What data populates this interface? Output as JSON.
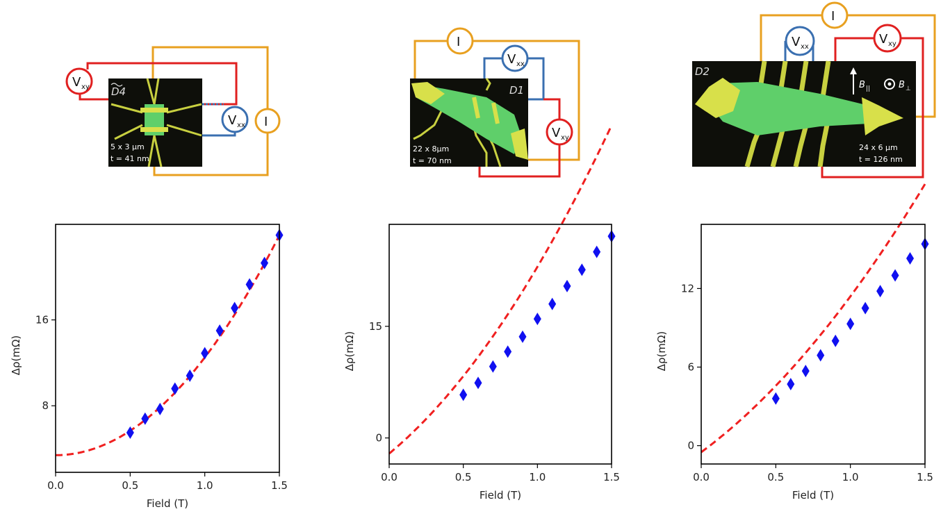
{
  "colors": {
    "current_wire": "#e8a020",
    "vxx_wire": "#3a6fb0",
    "vxy_wire": "#e02020",
    "sample_bg": "#0e0f0a",
    "gold_contact": "#d8e04a",
    "flake": "#5fcf6a",
    "marker": "#1010f0",
    "fit_line": "#f02020"
  },
  "devices": [
    {
      "id": "D4",
      "label": "D4",
      "label_decoration": "tilde",
      "dims": "5 x 3 µm",
      "thickness": "t = 41 nm",
      "meters": {
        "vxy": "xy",
        "vxx": "xx",
        "current": "I"
      },
      "field_labels": null
    },
    {
      "id": "D1",
      "label": "D1",
      "label_decoration": "none",
      "dims": "22 x 8µm",
      "thickness": "t = 70 nm",
      "meters": {
        "vxy": "xy",
        "vxx": "xx",
        "current": "I"
      },
      "field_labels": null
    },
    {
      "id": "D2",
      "label": "D2",
      "label_decoration": "none",
      "dims": "24 x 6 µm",
      "thickness": "t = 126 nm",
      "meters": {
        "vxy": "xy",
        "vxx": "xx",
        "current": "I"
      },
      "field_labels": {
        "parallel": "||",
        "perp": "⊥"
      }
    }
  ],
  "meter_letter": "V",
  "meter_current": "I",
  "field_symbol": "B",
  "chart_data": [
    {
      "type": "scatter",
      "xlabel": "Field (T)",
      "ylabel": "Δρ(mΩ)",
      "xlim": [
        0.0,
        1.5
      ],
      "ylim": [
        1.8,
        24.9
      ],
      "xticks": [
        "0.0",
        "0.5",
        "1.0",
        "1.5"
      ],
      "yticks": [
        8,
        16
      ],
      "x": [
        0.5,
        0.6,
        0.7,
        0.8,
        0.9,
        1.0,
        1.1,
        1.2,
        1.3,
        1.4,
        1.5
      ],
      "values": [
        5.5,
        6.8,
        7.7,
        9.6,
        10.8,
        12.9,
        15.0,
        17.1,
        19.3,
        21.3,
        23.9
      ],
      "fit": {
        "a": 3.4,
        "b": 9.1,
        "exponent": 2
      },
      "grid": false,
      "legend": null
    },
    {
      "type": "scatter",
      "xlabel": "Field (T)",
      "ylabel": "Δρ(mΩ)",
      "xlim": [
        0.0,
        1.5
      ],
      "ylim": [
        -3.5,
        28.7
      ],
      "xticks": [
        "0.0",
        "0.5",
        "1.0",
        "1.5"
      ],
      "yticks": [
        0,
        15
      ],
      "x": [
        0.5,
        0.6,
        0.7,
        0.8,
        0.9,
        1.0,
        1.1,
        1.2,
        1.3,
        1.4,
        1.5
      ],
      "values": [
        5.8,
        7.4,
        9.6,
        11.6,
        13.6,
        16.0,
        18.0,
        20.4,
        22.6,
        25.0,
        27.1
      ],
      "fit": {
        "a": -2.1,
        "b": 16.5,
        "c": 8.6
      },
      "grid": false,
      "legend": null
    },
    {
      "type": "scatter",
      "xlabel": "Field (T)",
      "ylabel": "Δρ(mΩ)",
      "xlim": [
        0.0,
        1.5
      ],
      "ylim": [
        -1.4,
        16.9
      ],
      "xticks": [
        "0.0",
        "0.5",
        "1.0",
        "1.5"
      ],
      "yticks": [
        0,
        6,
        12
      ],
      "x": [
        0.5,
        0.6,
        0.7,
        0.8,
        0.9,
        1.0,
        1.1,
        1.2,
        1.3,
        1.4,
        1.5
      ],
      "values": [
        3.6,
        4.7,
        5.7,
        6.9,
        8.0,
        9.3,
        10.5,
        11.8,
        13.0,
        14.3,
        15.4
      ],
      "fit": {
        "a": -0.5,
        "b": 8.4,
        "c": 3.5
      },
      "grid": false,
      "legend": null
    }
  ]
}
